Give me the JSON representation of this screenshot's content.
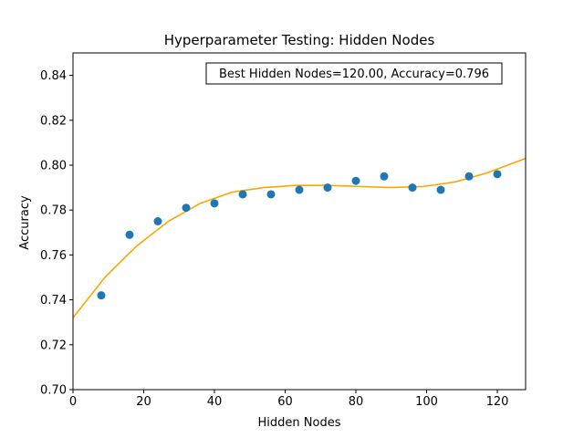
{
  "chart_data": {
    "type": "scatter",
    "title": "Hyperparameter Testing: Hidden Nodes",
    "xlabel": "Hidden Nodes",
    "ylabel": "Accuracy",
    "xlim": [
      0,
      128
    ],
    "ylim": [
      0.7,
      0.85
    ],
    "x_ticks": [
      0,
      20,
      40,
      60,
      80,
      100,
      120
    ],
    "y_ticks": [
      0.7,
      0.72,
      0.74,
      0.76,
      0.78,
      0.8,
      0.82,
      0.84
    ],
    "grid": false,
    "annotation": "Best Hidden Nodes=120.00, Accuracy=0.796",
    "series": [
      {
        "kind": "points",
        "color": "#1f77b4",
        "x": [
          8,
          16,
          24,
          32,
          40,
          48,
          56,
          64,
          72,
          80,
          88,
          96,
          104,
          112,
          120
        ],
        "y": [
          0.742,
          0.769,
          0.775,
          0.781,
          0.783,
          0.787,
          0.787,
          0.789,
          0.79,
          0.793,
          0.795,
          0.79,
          0.789,
          0.795,
          0.796
        ]
      },
      {
        "kind": "fit-line",
        "color": "#ffa500",
        "x": [
          0,
          9,
          18,
          27,
          36,
          45,
          54,
          63,
          72,
          81,
          90,
          99,
          108,
          117,
          128
        ],
        "y": [
          0.732,
          0.75,
          0.764,
          0.775,
          0.783,
          0.788,
          0.79,
          0.791,
          0.791,
          0.7905,
          0.79,
          0.7905,
          0.7925,
          0.7965,
          0.803
        ]
      }
    ]
  }
}
